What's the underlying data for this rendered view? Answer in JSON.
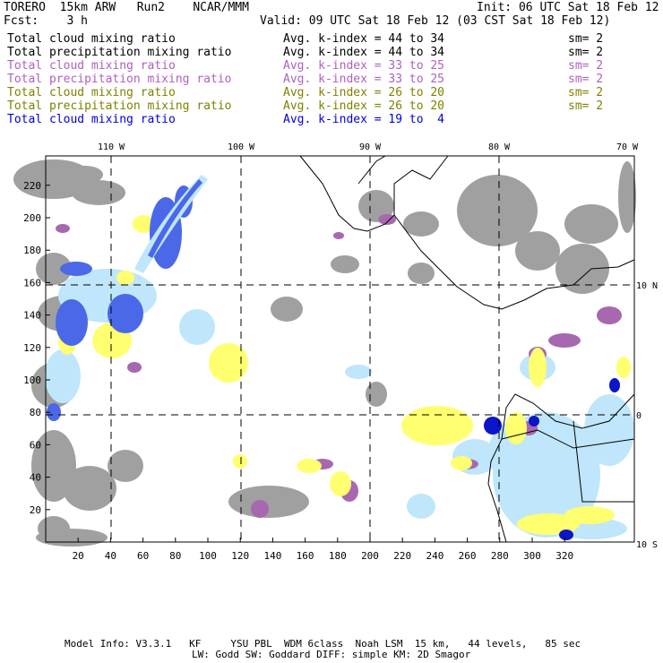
{
  "header": {
    "model": "TORERO  15km ARW   Run2    NCAR/MMM",
    "init": "Init: 06 UTC Sat 18 Feb 12",
    "fcst": "Fcst:    3 h",
    "valid": "Valid: 09 UTC Sat 18 Feb 12 (03 CST Sat 18 Feb 12)"
  },
  "fields": [
    {
      "name": "Total cloud mixing ratio",
      "kindex": "Avg. k-index = 44 to 34",
      "sm": "sm= 2",
      "color": "#000000"
    },
    {
      "name": "Total precipitation mixing ratio",
      "kindex": "Avg. k-index = 44 to 34",
      "sm": "sm= 2",
      "color": "#000000"
    },
    {
      "name": "Total cloud mixing ratio",
      "kindex": "Avg. k-index = 33 to 25",
      "sm": "sm= 2",
      "color": "#b060c0"
    },
    {
      "name": "Total precipitation mixing ratio",
      "kindex": "Avg. k-index = 33 to 25",
      "sm": "sm= 2",
      "color": "#b060c0"
    },
    {
      "name": "Total cloud mixing ratio",
      "kindex": "Avg. k-index = 26 to 20",
      "sm": "sm= 2",
      "color": "#808000"
    },
    {
      "name": "Total precipitation mixing ratio",
      "kindex": "Avg. k-index = 26 to 20",
      "sm": "sm= 2",
      "color": "#808000"
    },
    {
      "name": "Total cloud mixing ratio",
      "kindex": "Avg. k-index = 19 to  4",
      "sm": "",
      "color": "#0000e0"
    }
  ],
  "axes": {
    "x_ticks": [
      "20",
      "40",
      "60",
      "80",
      "100",
      "120",
      "140",
      "160",
      "180",
      "200",
      "220",
      "240",
      "260",
      "280",
      "300",
      "320"
    ],
    "y_ticks": [
      "220",
      "200",
      "180",
      "160",
      "140",
      "120",
      "100",
      "80",
      "60",
      "40",
      "20"
    ],
    "lon_labels": [
      "110 W",
      "100 W",
      "90 W",
      "80 W",
      "70 W"
    ],
    "lat_labels": [
      "10 N",
      "0",
      "10 S"
    ]
  },
  "footer": {
    "line1": "Model Info: V3.3.1   KF     YSU PBL  WDM 6class  Noah LSM  15 km,   44 levels,   85 sec",
    "line2": "LW: Godd SW: Goddard DIFF: simple KM: 2D Smagor"
  },
  "colors": {
    "gray": "#a0a0a0",
    "purple": "#a868b0",
    "yellow": "#ffff70",
    "light_blue": "#bfe6fa",
    "blue": "#4a68e8",
    "dark_blue": "#0a16c8"
  }
}
